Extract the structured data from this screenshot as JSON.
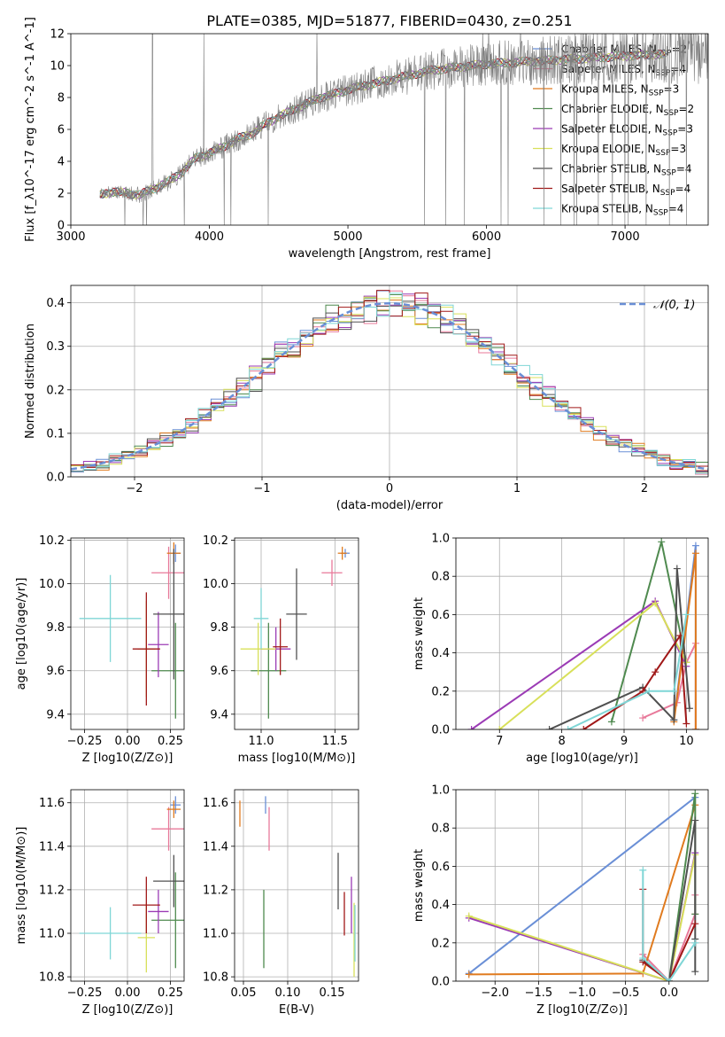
{
  "figure_title": "PLATE=0385, MJD=51877, FIBERID=0430, z=0.251",
  "colors": {
    "Chabrier MILES": "#6a8fd6",
    "Salpeter MILES": "#e8799a",
    "Kroupa MILES": "#e07b1f",
    "Chabrier ELODIE": "#4f8a4f",
    "Salpeter ELODIE": "#9b3bb5",
    "Kroupa ELODIE": "#d8e05a",
    "Chabrier STELIB": "#505050",
    "Salpeter STELIB": "#a01818",
    "Kroupa STELIB": "#7fd6d6"
  },
  "chart_data": [
    {
      "id": "spectrum",
      "type": "line",
      "title": "PLATE=0385, MJD=51877, FIBERID=0430, z=0.251",
      "xlabel": "wavelength [Angstrom, rest frame]",
      "ylabel": "Flux [f_λ10^-17 erg cm^-2 s^-1 A^-1]",
      "xlim": [
        3000,
        7600
      ],
      "ylim": [
        0,
        12
      ],
      "xticks": [
        "3000",
        "4000",
        "5000",
        "6000",
        "7000"
      ],
      "yticks": [
        "0",
        "2",
        "4",
        "6",
        "8",
        "10",
        "12"
      ],
      "legend_position": "right",
      "legend": [
        {
          "name": "Chabrier MILES",
          "nssp": "2"
        },
        {
          "name": "Salpeter MILES",
          "nssp": "4"
        },
        {
          "name": "Kroupa MILES",
          "nssp": "3"
        },
        {
          "name": "Chabrier ELODIE",
          "nssp": "2"
        },
        {
          "name": "Salpeter ELODIE",
          "nssp": "3"
        },
        {
          "name": "Kroupa ELODIE",
          "nssp": "3"
        },
        {
          "name": "Chabrier STELIB",
          "nssp": "4"
        },
        {
          "name": "Salpeter STELIB",
          "nssp": "4"
        },
        {
          "name": "Kroupa STELIB",
          "nssp": "4"
        }
      ],
      "continuum": {
        "x": [
          3210,
          3300,
          3400,
          3500,
          3600,
          3700,
          3800,
          3900,
          4000,
          4100,
          4200,
          4300,
          4400,
          4500,
          4600,
          4700,
          4800,
          4900,
          5000,
          5200,
          5400,
          5600,
          5800,
          6000,
          6200,
          6400,
          6600,
          6800,
          7000,
          7200,
          7400,
          7600
        ],
        "y": [
          1.9,
          2.1,
          2.0,
          1.9,
          2.3,
          2.7,
          3.3,
          4.2,
          4.5,
          4.9,
          5.4,
          5.7,
          6.3,
          6.8,
          7.2,
          7.6,
          8.0,
          8.2,
          8.5,
          8.9,
          9.3,
          9.7,
          9.9,
          10.1,
          10.2,
          10.3,
          10.4,
          10.5,
          10.6,
          10.7,
          10.7,
          10.7
        ]
      }
    },
    {
      "id": "residuals",
      "type": "histogram",
      "xlabel": "(data-model)/error",
      "ylabel": "Normed distribution",
      "xlim": [
        -2.5,
        2.5
      ],
      "ylim": [
        0,
        0.44
      ],
      "xticks": [
        "−2",
        "−1",
        "0",
        "1",
        "2"
      ],
      "yticks": [
        "0.0",
        "0.1",
        "0.2",
        "0.3",
        "0.4"
      ],
      "legend": "𝒩(0, 1)",
      "legend_position": "top-right",
      "gaussian": {
        "mean": 0,
        "sigma": 1,
        "color": "#6a8fd6"
      }
    },
    {
      "id": "age-vs-Z",
      "type": "errorbar",
      "xlabel": "Z [log10(Z/Z⊙)]",
      "ylabel": "age  [log10(age/yr)]",
      "xlim": [
        -0.33,
        0.33
      ],
      "ylim": [
        9.33,
        10.21
      ],
      "xticks": [
        "−0.25",
        "0.00",
        "0.25"
      ],
      "yticks": [
        "9.4",
        "9.6",
        "9.8",
        "10.0",
        "10.2"
      ],
      "points": [
        {
          "model": "Chabrier MILES",
          "x": 0.28,
          "y": 10.14,
          "xe": 0.03,
          "ye": 0.04
        },
        {
          "model": "Salpeter MILES",
          "x": 0.24,
          "y": 10.05,
          "xe": 0.1,
          "ye": 0.12
        },
        {
          "model": "Kroupa MILES",
          "x": 0.27,
          "y": 10.14,
          "xe": 0.04,
          "ye": 0.05
        },
        {
          "model": "Chabrier ELODIE",
          "x": 0.28,
          "y": 9.6,
          "xe": 0.14,
          "ye": 0.22
        },
        {
          "model": "Salpeter ELODIE",
          "x": 0.18,
          "y": 9.72,
          "xe": 0.06,
          "ye": 0.15
        },
        {
          "model": "Kroupa ELODIE",
          "x": 0.11,
          "y": 9.7,
          "xe": 0.05,
          "ye": 0.22
        },
        {
          "model": "Chabrier STELIB",
          "x": 0.27,
          "y": 9.86,
          "xe": 0.12,
          "ye": 0.3
        },
        {
          "model": "Salpeter STELIB",
          "x": 0.11,
          "y": 9.7,
          "xe": 0.08,
          "ye": 0.26
        },
        {
          "model": "Kroupa STELIB",
          "x": -0.1,
          "y": 9.84,
          "xe": 0.18,
          "ye": 0.2
        }
      ]
    },
    {
      "id": "age-vs-mass",
      "type": "errorbar",
      "xlabel": "mass [log10(M/M⊙)]",
      "xlim": [
        10.82,
        11.66
      ],
      "ylim": [
        9.33,
        10.21
      ],
      "xticks": [
        "11.0",
        "11.5"
      ],
      "yticks": [
        "9.4",
        "9.6",
        "9.8",
        "10.0",
        "10.2"
      ],
      "points": [
        {
          "model": "Chabrier MILES",
          "x": 11.57,
          "y": 10.14,
          "xe": 0.03,
          "ye": 0.02
        },
        {
          "model": "Salpeter MILES",
          "x": 11.48,
          "y": 10.05,
          "xe": 0.07,
          "ye": 0.06
        },
        {
          "model": "Kroupa MILES",
          "x": 11.55,
          "y": 10.14,
          "xe": 0.03,
          "ye": 0.03
        },
        {
          "model": "Chabrier ELODIE",
          "x": 11.05,
          "y": 9.6,
          "xe": 0.12,
          "ye": 0.22
        },
        {
          "model": "Salpeter ELODIE",
          "x": 11.1,
          "y": 9.7,
          "xe": 0.1,
          "ye": 0.1
        },
        {
          "model": "Kroupa ELODIE",
          "x": 10.98,
          "y": 9.7,
          "xe": 0.12,
          "ye": 0.12
        },
        {
          "model": "Chabrier STELIB",
          "x": 11.24,
          "y": 9.86,
          "xe": 0.07,
          "ye": 0.21
        },
        {
          "model": "Salpeter STELIB",
          "x": 11.13,
          "y": 9.71,
          "xe": 0.05,
          "ye": 0.13
        },
        {
          "model": "Kroupa STELIB",
          "x": 11.0,
          "y": 9.84,
          "xe": 0.05,
          "ye": 0.14
        }
      ]
    },
    {
      "id": "weight-vs-age",
      "type": "line",
      "xlabel": "age  [log10(age/yr)]",
      "ylabel": "mass weight",
      "xlim": [
        6.3,
        10.35
      ],
      "ylim": [
        0,
        1.0
      ],
      "xticks": [
        "7",
        "8",
        "9",
        "10"
      ],
      "yticks": [
        "0.0",
        "0.2",
        "0.4",
        "0.6",
        "0.8",
        "1.0"
      ],
      "series": [
        {
          "model": "Chabrier MILES",
          "x": [
            9.8,
            10.15,
            10.15
          ],
          "y": [
            0.05,
            0.96,
            0.0
          ]
        },
        {
          "model": "Salpeter MILES",
          "x": [
            9.3,
            9.85,
            10.0,
            10.15,
            10.15
          ],
          "y": [
            0.06,
            0.14,
            0.35,
            0.45,
            0.0
          ]
        },
        {
          "model": "Kroupa MILES",
          "x": [
            9.8,
            10.15,
            10.15
          ],
          "y": [
            0.04,
            0.92,
            0.0
          ]
        },
        {
          "model": "Chabrier ELODIE",
          "x": [
            8.8,
            9.6,
            10.0
          ],
          "y": [
            0.04,
            0.98,
            0.35
          ]
        },
        {
          "model": "Salpeter ELODIE",
          "x": [
            6.55,
            9.5,
            10.0
          ],
          "y": [
            0.0,
            0.67,
            0.33
          ]
        },
        {
          "model": "Kroupa ELODIE",
          "x": [
            7.0,
            9.5,
            10.0
          ],
          "y": [
            0.0,
            0.66,
            0.35
          ]
        },
        {
          "model": "Chabrier STELIB",
          "x": [
            7.8,
            9.3,
            9.8,
            9.85,
            10.05
          ],
          "y": [
            0.0,
            0.22,
            0.05,
            0.84,
            0.11
          ]
        },
        {
          "model": "Salpeter STELIB",
          "x": [
            8.35,
            9.3,
            9.5,
            9.9,
            10.0
          ],
          "y": [
            0.0,
            0.2,
            0.3,
            0.49,
            0.03
          ]
        },
        {
          "model": "Kroupa STELIB",
          "x": [
            8.1,
            9.4,
            9.8,
            10.0
          ],
          "y": [
            0.0,
            0.2,
            0.2,
            0.6
          ]
        }
      ]
    },
    {
      "id": "mass-vs-Z",
      "type": "errorbar",
      "xlabel": "Z [log10(Z/Z⊙)]",
      "ylabel": "mass [log10(M/M⊙)]",
      "xlim": [
        -0.33,
        0.33
      ],
      "ylim": [
        10.78,
        11.66
      ],
      "xticks": [
        "−0.25",
        "0.00",
        "0.25"
      ],
      "yticks": [
        "10.8",
        "11.0",
        "11.2",
        "11.4",
        "11.6"
      ],
      "points": [
        {
          "model": "Chabrier MILES",
          "x": 0.28,
          "y": 11.59,
          "xe": 0.03,
          "ye": 0.04
        },
        {
          "model": "Salpeter MILES",
          "x": 0.24,
          "y": 11.48,
          "xe": 0.1,
          "ye": 0.1
        },
        {
          "model": "Kroupa MILES",
          "x": 0.27,
          "y": 11.57,
          "xe": 0.04,
          "ye": 0.04
        },
        {
          "model": "Chabrier ELODIE",
          "x": 0.28,
          "y": 11.06,
          "xe": 0.14,
          "ye": 0.22
        },
        {
          "model": "Salpeter ELODIE",
          "x": 0.18,
          "y": 11.1,
          "xe": 0.06,
          "ye": 0.1
        },
        {
          "model": "Kroupa ELODIE",
          "x": 0.11,
          "y": 10.98,
          "xe": 0.05,
          "ye": 0.16
        },
        {
          "model": "Chabrier STELIB",
          "x": 0.27,
          "y": 11.24,
          "xe": 0.12,
          "ye": 0.12
        },
        {
          "model": "Salpeter STELIB",
          "x": 0.11,
          "y": 11.13,
          "xe": 0.08,
          "ye": 0.13
        },
        {
          "model": "Kroupa STELIB",
          "x": -0.1,
          "y": 11.0,
          "xe": 0.18,
          "ye": 0.12
        }
      ]
    },
    {
      "id": "mass-vs-EBV",
      "type": "errorbar",
      "xlabel": "E(B-V)",
      "xlim": [
        0.04,
        0.18
      ],
      "ylim": [
        10.78,
        11.66
      ],
      "xticks": [
        "0.05",
        "0.10",
        "0.15"
      ],
      "yticks": [
        "10.8",
        "11.0",
        "11.2",
        "11.4",
        "11.6"
      ],
      "points": [
        {
          "model": "Chabrier MILES",
          "x": 0.075,
          "y": 11.59,
          "xe": 0,
          "ye": 0.04
        },
        {
          "model": "Salpeter MILES",
          "x": 0.079,
          "y": 11.48,
          "xe": 0,
          "ye": 0.1
        },
        {
          "model": "Kroupa MILES",
          "x": 0.046,
          "y": 11.55,
          "xe": 0,
          "ye": 0.06
        },
        {
          "model": "Chabrier ELODIE",
          "x": 0.073,
          "y": 11.02,
          "xe": 0,
          "ye": 0.18
        },
        {
          "model": "Salpeter ELODIE",
          "x": 0.172,
          "y": 11.13,
          "xe": 0,
          "ye": 0.13
        },
        {
          "model": "Kroupa ELODIE",
          "x": 0.175,
          "y": 10.97,
          "xe": 0,
          "ye": 0.17
        },
        {
          "model": "Chabrier STELIB",
          "x": 0.157,
          "y": 11.24,
          "xe": 0,
          "ye": 0.13
        },
        {
          "model": "Salpeter STELIB",
          "x": 0.164,
          "y": 11.09,
          "xe": 0,
          "ye": 0.1
        },
        {
          "model": "Kroupa STELIB",
          "x": 0.176,
          "y": 11.0,
          "xe": 0,
          "ye": 0.13
        }
      ]
    },
    {
      "id": "weight-vs-Z",
      "type": "line",
      "xlabel": "Z [log10(Z/Z⊙)]",
      "ylabel": "mass weight",
      "xlim": [
        -2.45,
        0.45
      ],
      "ylim": [
        0,
        1.0
      ],
      "xticks": [
        "−2.0",
        "−1.5",
        "−1.0",
        "−0.5",
        "0.0"
      ],
      "yticks": [
        "0.0",
        "0.2",
        "0.4",
        "0.6",
        "0.8",
        "1.0"
      ],
      "series": [
        {
          "model": "Chabrier MILES",
          "x": [
            -2.3,
            0.3
          ],
          "y": [
            0.04,
            0.96
          ]
        },
        {
          "model": "Salpeter MILES",
          "x": [
            -0.3,
            0.0,
            0.3,
            0.3
          ],
          "y": [
            0.14,
            0.0,
            0.35,
            0.45
          ]
        },
        {
          "model": "Kroupa MILES",
          "x": [
            -2.3,
            -0.3,
            0.3
          ],
          "y": [
            0.035,
            0.04,
            0.92
          ]
        },
        {
          "model": "Chabrier ELODIE",
          "x": [
            0.0,
            0.3,
            0.3
          ],
          "y": [
            0.0,
            0.98,
            0.35
          ]
        },
        {
          "model": "Salpeter ELODIE",
          "x": [
            -2.3,
            0.0,
            0.3
          ],
          "y": [
            0.33,
            0.0,
            0.67
          ]
        },
        {
          "model": "Kroupa ELODIE",
          "x": [
            -2.3,
            0.0,
            0.3
          ],
          "y": [
            0.34,
            0.0,
            0.66
          ]
        },
        {
          "model": "Chabrier STELIB",
          "x": [
            -0.3,
            0.0,
            0.3,
            0.3,
            0.3
          ],
          "y": [
            0.11,
            0.0,
            0.84,
            0.22,
            0.05
          ]
        },
        {
          "model": "Salpeter STELIB",
          "x": [
            -0.3,
            -0.3,
            0.0,
            0.3
          ],
          "y": [
            0.48,
            0.1,
            0.0,
            0.3
          ]
        },
        {
          "model": "Kroupa STELIB",
          "x": [
            -0.3,
            -0.3,
            0.0,
            0.3
          ],
          "y": [
            0.58,
            0.12,
            0.0,
            0.2
          ]
        }
      ]
    }
  ]
}
